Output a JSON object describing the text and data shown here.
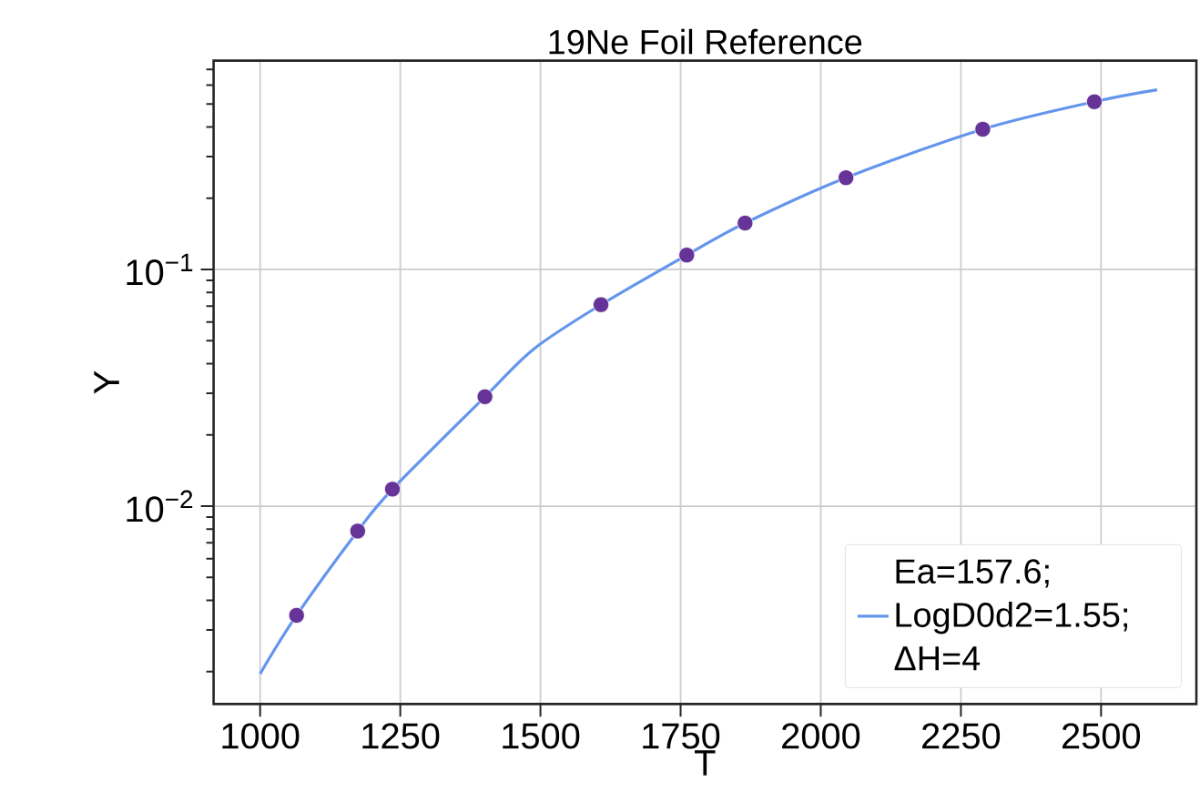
{
  "chart_data": {
    "type": "line",
    "title": "19Ne Foil Reference",
    "xlabel": "T",
    "ylabel": "Y",
    "log": "y",
    "grid": true,
    "legend": "bottom right",
    "xlim": [
      917,
      2670
    ],
    "ylim": [
      0.00146,
      0.762
    ],
    "xticks": [
      1000,
      1250,
      1500,
      1750,
      2000,
      2250,
      2500
    ],
    "yticks": [
      {
        "value": 0.002,
        "label": null
      },
      {
        "value": 0.003,
        "label": null
      },
      {
        "value": 0.004,
        "label": null
      },
      {
        "value": 0.005,
        "label": null
      },
      {
        "value": 0.006,
        "label": null
      },
      {
        "value": 0.007,
        "label": null
      },
      {
        "value": 0.008,
        "label": null
      },
      {
        "value": 0.009,
        "label": null
      },
      {
        "value": 0.01,
        "label": "10$^{−2}$"
      },
      {
        "value": 0.02,
        "label": null
      },
      {
        "value": 0.03,
        "label": null
      },
      {
        "value": 0.04,
        "label": null
      },
      {
        "value": 0.05,
        "label": null
      },
      {
        "value": 0.06,
        "label": null
      },
      {
        "value": 0.07,
        "label": null
      },
      {
        "value": 0.08,
        "label": null
      },
      {
        "value": 0.09,
        "label": null
      },
      {
        "value": 0.1,
        "label": "10$^{−1}$"
      },
      {
        "value": 0.2,
        "label": null
      },
      {
        "value": 0.3,
        "label": null
      },
      {
        "value": 0.4,
        "label": null
      },
      {
        "value": 0.5,
        "label": null
      },
      {
        "value": 0.6,
        "label": null
      },
      {
        "value": 0.7,
        "label": null
      }
    ],
    "series": [
      {
        "name": "Ea=157.6; LogD0d2=1.55; ΔH=4",
        "color": "#6495ed",
        "marker": "none",
        "line_style": "solid",
        "x": [
          1000,
          1065,
          1174,
          1236,
          1401,
          1489,
          1608,
          1761,
          1865,
          2045,
          2289,
          2488,
          2600
        ],
        "values": [
          0.00196,
          0.00346,
          0.00785,
          0.0118,
          0.029,
          0.0463,
          0.071,
          0.115,
          0.157,
          0.244,
          0.391,
          0.511,
          0.574
        ]
      },
      {
        "type": "scatter",
        "color": "#663399",
        "marker": "circle",
        "x": [
          1065,
          1174,
          1236,
          1401,
          1608,
          1761,
          1865,
          2045,
          2289,
          2488
        ],
        "values": [
          0.00346,
          0.00785,
          0.0118,
          0.029,
          0.071,
          0.115,
          0.157,
          0.244,
          0.391,
          0.511
        ]
      }
    ]
  }
}
